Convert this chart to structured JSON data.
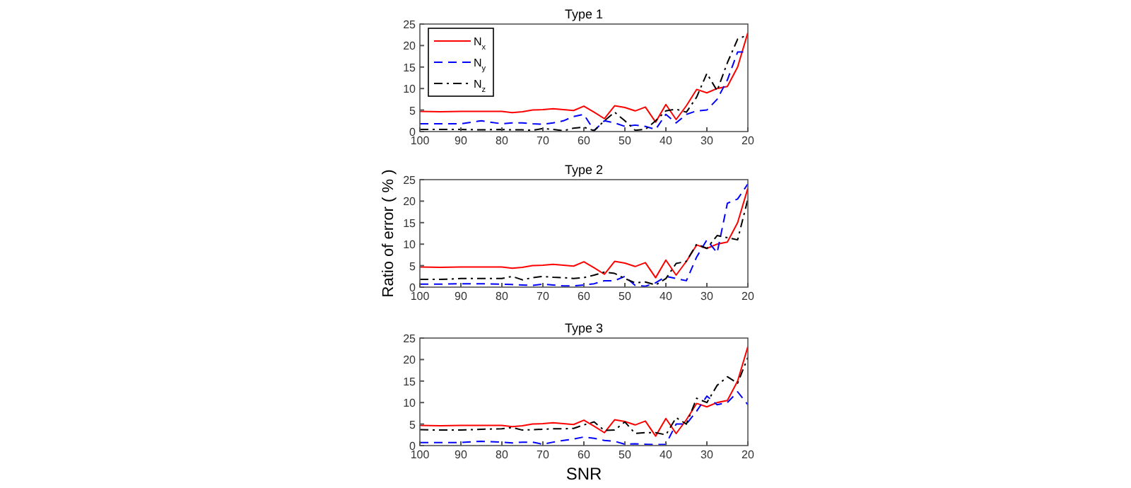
{
  "chart_data": [
    {
      "type": "line",
      "title": "Type 1",
      "x": [
        100,
        95,
        90,
        85,
        80,
        77.5,
        75,
        72.5,
        70,
        67.5,
        65,
        62.5,
        60,
        57.5,
        55,
        52.5,
        50,
        47.5,
        45,
        42.5,
        40,
        37.5,
        35,
        32.5,
        30,
        27.5,
        25,
        22.5,
        20
      ],
      "xlim": [
        100,
        20
      ],
      "xticks": [
        100,
        90,
        80,
        70,
        60,
        50,
        40,
        30,
        20
      ],
      "ylim": [
        0,
        25
      ],
      "yticks": [
        0,
        5,
        10,
        15,
        20,
        25
      ],
      "legend": "top left",
      "series": [
        {
          "name": "N$_{x}$",
          "color": "#ff0000",
          "line_style": "solid",
          "values": [
            4.7,
            4.6,
            4.7,
            4.7,
            4.7,
            4.4,
            4.6,
            5.0,
            5.1,
            5.3,
            5.1,
            4.9,
            5.9,
            4.5,
            3.0,
            6.0,
            5.6,
            4.8,
            5.7,
            2.2,
            6.3,
            2.8,
            6.0,
            9.8,
            9.0,
            10.0,
            10.5,
            15.0,
            23.0
          ]
        },
        {
          "name": "N$_{y}$",
          "color": "#0000ff",
          "line_style": "dashed",
          "values": [
            1.8,
            1.8,
            1.8,
            2.5,
            1.8,
            2.0,
            2.0,
            1.8,
            1.7,
            2.0,
            2.5,
            3.5,
            4.0,
            0.2,
            2.5,
            2.0,
            1.2,
            1.5,
            1.2,
            0.5,
            4.0,
            2.0,
            4.0,
            4.8,
            5.0,
            7.5,
            12.0,
            18.5,
            18.5
          ]
        },
        {
          "name": "N$_{z}$",
          "color": "#000000",
          "line_style": "dashdot",
          "values": [
            0.5,
            0.5,
            0.5,
            0.4,
            0.5,
            0.4,
            0.4,
            0.3,
            0.7,
            0.5,
            0.2,
            0.8,
            1.0,
            0.2,
            2.5,
            4.5,
            2.5,
            0.3,
            0.5,
            2.5,
            4.8,
            5.2,
            4.5,
            8.0,
            13.5,
            9.5,
            16.0,
            21.5,
            22.5
          ]
        }
      ]
    },
    {
      "type": "line",
      "title": "Type 2",
      "ylabel": "Ratio of error ( % )",
      "x": [
        100,
        95,
        90,
        85,
        80,
        77.5,
        75,
        72.5,
        70,
        67.5,
        65,
        62.5,
        60,
        57.5,
        55,
        52.5,
        50,
        47.5,
        45,
        42.5,
        40,
        37.5,
        35,
        32.5,
        30,
        27.5,
        25,
        22.5,
        20
      ],
      "xlim": [
        100,
        20
      ],
      "xticks": [
        100,
        90,
        80,
        70,
        60,
        50,
        40,
        30,
        20
      ],
      "ylim": [
        0,
        25
      ],
      "yticks": [
        0,
        5,
        10,
        15,
        20,
        25
      ],
      "series": [
        {
          "color": "#ff0000",
          "line_style": "solid",
          "values": [
            4.7,
            4.6,
            4.7,
            4.7,
            4.7,
            4.4,
            4.6,
            5.0,
            5.1,
            5.3,
            5.1,
            4.9,
            5.9,
            4.5,
            3.0,
            6.0,
            5.6,
            4.8,
            5.7,
            2.2,
            6.3,
            2.8,
            6.0,
            9.8,
            9.0,
            10.0,
            10.5,
            15.0,
            23.0
          ]
        },
        {
          "color": "#0000ff",
          "line_style": "dashed",
          "values": [
            0.7,
            0.7,
            0.8,
            0.8,
            0.7,
            0.6,
            0.5,
            0.4,
            0.7,
            0.5,
            0.3,
            0.3,
            0.5,
            0.8,
            1.5,
            1.5,
            2.5,
            0.4,
            0.2,
            1.0,
            2.5,
            2.0,
            1.5,
            7.0,
            11.0,
            8.0,
            19.5,
            20.5,
            24.0
          ]
        },
        {
          "color": "#000000",
          "line_style": "dashdot",
          "values": [
            1.8,
            1.8,
            2.0,
            2.0,
            2.0,
            2.5,
            1.7,
            2.2,
            2.5,
            2.3,
            2.2,
            2.0,
            2.2,
            2.8,
            3.5,
            3.2,
            2.0,
            1.0,
            1.2,
            0.5,
            2.0,
            5.5,
            6.0,
            10.0,
            9.0,
            12.0,
            11.5,
            11.0,
            20.5
          ]
        }
      ]
    },
    {
      "type": "line",
      "title": "Type 3",
      "xlabel": "SNR",
      "x": [
        100,
        95,
        90,
        85,
        80,
        77.5,
        75,
        72.5,
        70,
        67.5,
        65,
        62.5,
        60,
        57.5,
        55,
        52.5,
        50,
        47.5,
        45,
        42.5,
        40,
        37.5,
        35,
        32.5,
        30,
        27.5,
        25,
        22.5,
        20
      ],
      "xlim": [
        100,
        20
      ],
      "xticks": [
        100,
        90,
        80,
        70,
        60,
        50,
        40,
        30,
        20
      ],
      "ylim": [
        0,
        25
      ],
      "yticks": [
        0,
        5,
        10,
        15,
        20,
        25
      ],
      "series": [
        {
          "color": "#ff0000",
          "line_style": "solid",
          "values": [
            4.7,
            4.6,
            4.7,
            4.7,
            4.7,
            4.4,
            4.6,
            5.0,
            5.1,
            5.3,
            5.1,
            4.9,
            5.9,
            4.5,
            3.0,
            6.0,
            5.6,
            4.8,
            5.7,
            2.2,
            6.3,
            2.8,
            6.0,
            9.8,
            9.0,
            10.0,
            10.5,
            15.0,
            23.0
          ]
        },
        {
          "color": "#0000ff",
          "line_style": "dashed",
          "values": [
            0.7,
            0.7,
            0.7,
            1.0,
            0.8,
            0.6,
            0.8,
            0.8,
            0.3,
            0.8,
            1.2,
            1.5,
            2.0,
            1.7,
            1.2,
            1.0,
            0.3,
            0.4,
            0.3,
            0.2,
            0.3,
            5.0,
            5.0,
            8.0,
            11.5,
            9.5,
            10.0,
            12.5,
            9.5
          ]
        },
        {
          "color": "#000000",
          "line_style": "dashdot",
          "values": [
            3.7,
            3.6,
            3.6,
            3.8,
            3.9,
            4.2,
            3.6,
            3.7,
            3.8,
            3.9,
            3.9,
            4.0,
            4.8,
            5.5,
            3.5,
            3.6,
            5.5,
            2.8,
            3.0,
            3.0,
            2.5,
            6.5,
            5.0,
            11.0,
            10.0,
            14.0,
            16.0,
            14.5,
            20.5
          ]
        }
      ]
    }
  ]
}
